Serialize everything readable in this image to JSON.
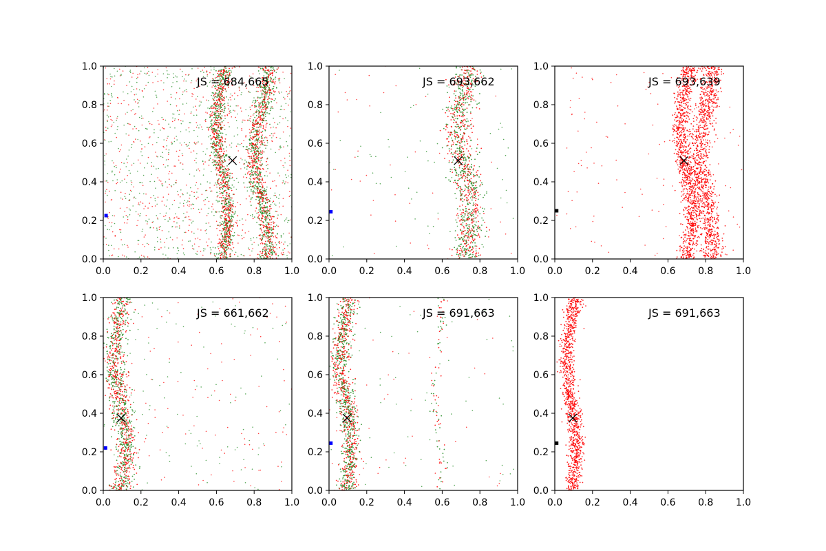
{
  "chart_data": [
    {
      "type": "scatter",
      "annotation": "JS = 684,665",
      "xlim": [
        0,
        1
      ],
      "ylim": [
        0,
        1
      ],
      "x_ticks": [
        "0.0",
        "0.2",
        "0.4",
        "0.6",
        "0.8",
        "1.0"
      ],
      "y_ticks": [
        "0.0",
        "0.2",
        "0.4",
        "0.6",
        "0.8",
        "1.0"
      ],
      "bands": [
        {
          "x": 0.63,
          "amplitude": 0.03,
          "width": 0.025
        },
        {
          "x": 0.84,
          "amplitude": 0.035,
          "width": 0.03
        }
      ],
      "point_colors": [
        "#228b22",
        "#ff0000"
      ],
      "background_density": "high",
      "marker": {
        "x": 0.685,
        "y": 0.51
      },
      "corner_marker": {
        "x": 0.015,
        "y": 0.225,
        "color": "#0000ff"
      }
    },
    {
      "type": "scatter",
      "annotation": "JS = 693,662",
      "xlim": [
        0,
        1
      ],
      "ylim": [
        0,
        1
      ],
      "x_ticks": [
        "0.0",
        "0.2",
        "0.4",
        "0.6",
        "0.8",
        "1.0"
      ],
      "y_ticks": [
        "0.0",
        "0.2",
        "0.4",
        "0.6",
        "0.8",
        "1.0"
      ],
      "bands": [
        {
          "x": 0.72,
          "amplitude": 0.035,
          "width": 0.045
        }
      ],
      "point_colors": [
        "#228b22",
        "#ff0000"
      ],
      "background_density": "low",
      "marker": {
        "x": 0.685,
        "y": 0.51
      },
      "corner_marker": {
        "x": 0.01,
        "y": 0.245,
        "color": "#0000ff"
      }
    },
    {
      "type": "scatter",
      "annotation": "JS = 693,639",
      "xlim": [
        0,
        1
      ],
      "ylim": [
        0,
        1
      ],
      "x_ticks": [
        "0.0",
        "0.2",
        "0.4",
        "0.6",
        "0.8",
        "1.0"
      ],
      "y_ticks": [
        "0.0",
        "0.2",
        "0.4",
        "0.6",
        "0.8",
        "1.0"
      ],
      "bands": [
        {
          "x": 0.7,
          "amplitude": 0.03,
          "width": 0.03
        },
        {
          "x": 0.8,
          "amplitude": 0.035,
          "width": 0.035
        }
      ],
      "point_colors": [
        "#ff0000"
      ],
      "background_density": "low",
      "marker": {
        "x": 0.685,
        "y": 0.51
      },
      "corner_marker": {
        "x": 0.01,
        "y": 0.25,
        "color": "#000000"
      }
    },
    {
      "type": "scatter",
      "annotation": "JS = 661,662",
      "xlim": [
        0,
        1
      ],
      "ylim": [
        0,
        1
      ],
      "x_ticks": [
        "0.0",
        "0.2",
        "0.4",
        "0.6",
        "0.8",
        "1.0"
      ],
      "y_ticks": [
        "0.0",
        "0.2",
        "0.4",
        "0.6",
        "0.8",
        "1.0"
      ],
      "bands": [
        {
          "x": 0.09,
          "amplitude": 0.03,
          "width": 0.035
        }
      ],
      "point_colors": [
        "#228b22",
        "#ff0000"
      ],
      "background_density": "medium",
      "marker": {
        "x": 0.095,
        "y": 0.375
      },
      "corner_marker": {
        "x": 0.012,
        "y": 0.22,
        "color": "#0000ff"
      }
    },
    {
      "type": "scatter",
      "annotation": "JS = 691,663",
      "xlim": [
        0,
        1
      ],
      "ylim": [
        0,
        1
      ],
      "x_ticks": [
        "0.0",
        "0.2",
        "0.4",
        "0.6",
        "0.8",
        "1.0"
      ],
      "y_ticks": [
        "0.0",
        "0.2",
        "0.4",
        "0.6",
        "0.8",
        "1.0"
      ],
      "bands": [
        {
          "x": 0.09,
          "amplitude": 0.03,
          "width": 0.03
        },
        {
          "x": 0.58,
          "amplitude": 0.02,
          "width": 0.015,
          "sparse": true
        }
      ],
      "point_colors": [
        "#228b22",
        "#ff0000"
      ],
      "background_density": "low",
      "marker": {
        "x": 0.095,
        "y": 0.375
      },
      "corner_marker": {
        "x": 0.01,
        "y": 0.245,
        "color": "#0000ff"
      }
    },
    {
      "type": "scatter",
      "annotation": "JS = 691,663",
      "xlim": [
        0,
        1
      ],
      "ylim": [
        0,
        1
      ],
      "x_ticks": [
        "0.0",
        "0.2",
        "0.4",
        "0.6",
        "0.8",
        "1.0"
      ],
      "y_ticks": [
        "0.0",
        "0.2",
        "0.4",
        "0.6",
        "0.8",
        "1.0"
      ],
      "bands": [
        {
          "x": 0.09,
          "amplitude": 0.025,
          "width": 0.025
        }
      ],
      "point_colors": [
        "#ff0000"
      ],
      "background_density": "none",
      "marker": {
        "x": 0.095,
        "y": 0.375
      },
      "corner_marker": {
        "x": 0.01,
        "y": 0.245,
        "color": "#000000"
      }
    }
  ]
}
